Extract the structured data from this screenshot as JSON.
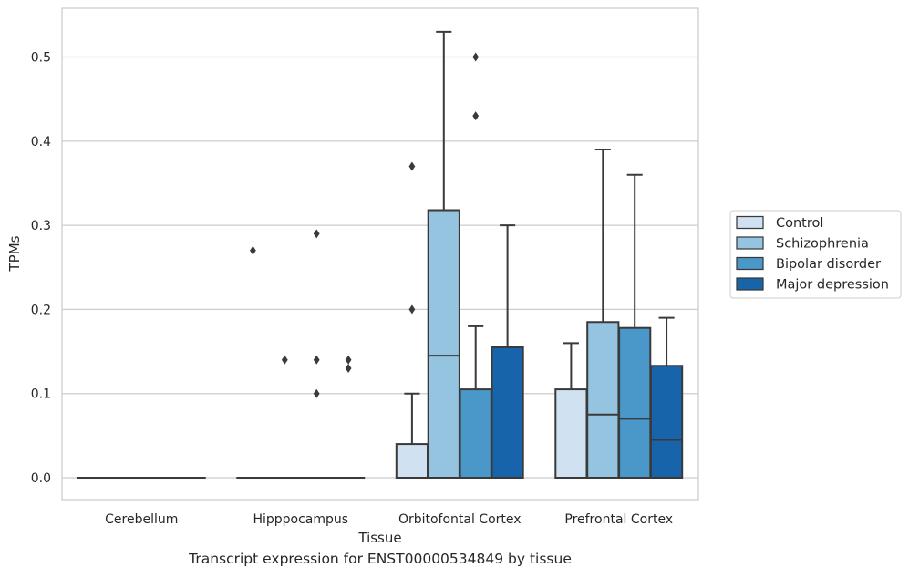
{
  "caption": "Transcript expression for ENST00000534849 by tissue",
  "chart_data": {
    "type": "box",
    "xlabel": "Tissue",
    "ylabel": "TPMs",
    "categories": [
      "Cerebellum",
      "Hipppocampus",
      "Orbitofontal Cortex",
      "Prefrontal Cortex"
    ],
    "yticks": [
      0.0,
      0.1,
      0.2,
      0.3,
      0.4,
      0.5
    ],
    "ytick_labels": [
      "0.0",
      "0.1",
      "0.2",
      "0.3",
      "0.4",
      "0.5"
    ],
    "ylim": [
      -0.026,
      0.558
    ],
    "grid": true,
    "legend_position": "right, outside plot",
    "series": [
      {
        "name": "Control",
        "color": "#d0e1f2",
        "boxes": [
          {
            "q1": 0,
            "median": 0,
            "q3": 0,
            "whisker_low": 0,
            "whisker_high": 0,
            "outliers": []
          },
          {
            "q1": 0,
            "median": 0,
            "q3": 0,
            "whisker_low": 0,
            "whisker_high": 0,
            "outliers": [
              0.27
            ]
          },
          {
            "q1": 0,
            "median": 0,
            "q3": 0.04,
            "whisker_low": 0,
            "whisker_high": 0.1,
            "outliers": [
              0.2,
              0.37
            ]
          },
          {
            "q1": 0,
            "median": 0,
            "q3": 0.105,
            "whisker_low": 0,
            "whisker_high": 0.16,
            "outliers": []
          }
        ]
      },
      {
        "name": "Schizophrenia",
        "color": "#94c4df",
        "boxes": [
          {
            "q1": 0,
            "median": 0,
            "q3": 0,
            "whisker_low": 0,
            "whisker_high": 0,
            "outliers": []
          },
          {
            "q1": 0,
            "median": 0,
            "q3": 0,
            "whisker_low": 0,
            "whisker_high": 0,
            "outliers": [
              0.14
            ]
          },
          {
            "q1": 0,
            "median": 0.145,
            "q3": 0.318,
            "whisker_low": 0,
            "whisker_high": 0.53,
            "outliers": []
          },
          {
            "q1": 0,
            "median": 0.075,
            "q3": 0.185,
            "whisker_low": 0,
            "whisker_high": 0.39,
            "outliers": []
          }
        ]
      },
      {
        "name": "Bipolar disorder",
        "color": "#4a98c9",
        "boxes": [
          {
            "q1": 0,
            "median": 0,
            "q3": 0,
            "whisker_low": 0,
            "whisker_high": 0,
            "outliers": []
          },
          {
            "q1": 0,
            "median": 0,
            "q3": 0,
            "whisker_low": 0,
            "whisker_high": 0,
            "outliers": [
              0.1,
              0.14,
              0.29
            ]
          },
          {
            "q1": 0,
            "median": 0,
            "q3": 0.105,
            "whisker_low": 0,
            "whisker_high": 0.18,
            "outliers": [
              0.43,
              0.5
            ]
          },
          {
            "q1": 0,
            "median": 0.07,
            "q3": 0.178,
            "whisker_low": 0,
            "whisker_high": 0.36,
            "outliers": []
          }
        ]
      },
      {
        "name": "Major depression",
        "color": "#1764ab",
        "boxes": [
          {
            "q1": 0,
            "median": 0,
            "q3": 0,
            "whisker_low": 0,
            "whisker_high": 0,
            "outliers": []
          },
          {
            "q1": 0,
            "median": 0,
            "q3": 0,
            "whisker_low": 0,
            "whisker_high": 0,
            "outliers": [
              0.13,
              0.14
            ]
          },
          {
            "q1": 0,
            "median": 0,
            "q3": 0.155,
            "whisker_low": 0,
            "whisker_high": 0.3,
            "outliers": []
          },
          {
            "q1": 0,
            "median": 0.045,
            "q3": 0.133,
            "whisker_low": 0,
            "whisker_high": 0.19,
            "outliers": []
          }
        ]
      }
    ]
  }
}
